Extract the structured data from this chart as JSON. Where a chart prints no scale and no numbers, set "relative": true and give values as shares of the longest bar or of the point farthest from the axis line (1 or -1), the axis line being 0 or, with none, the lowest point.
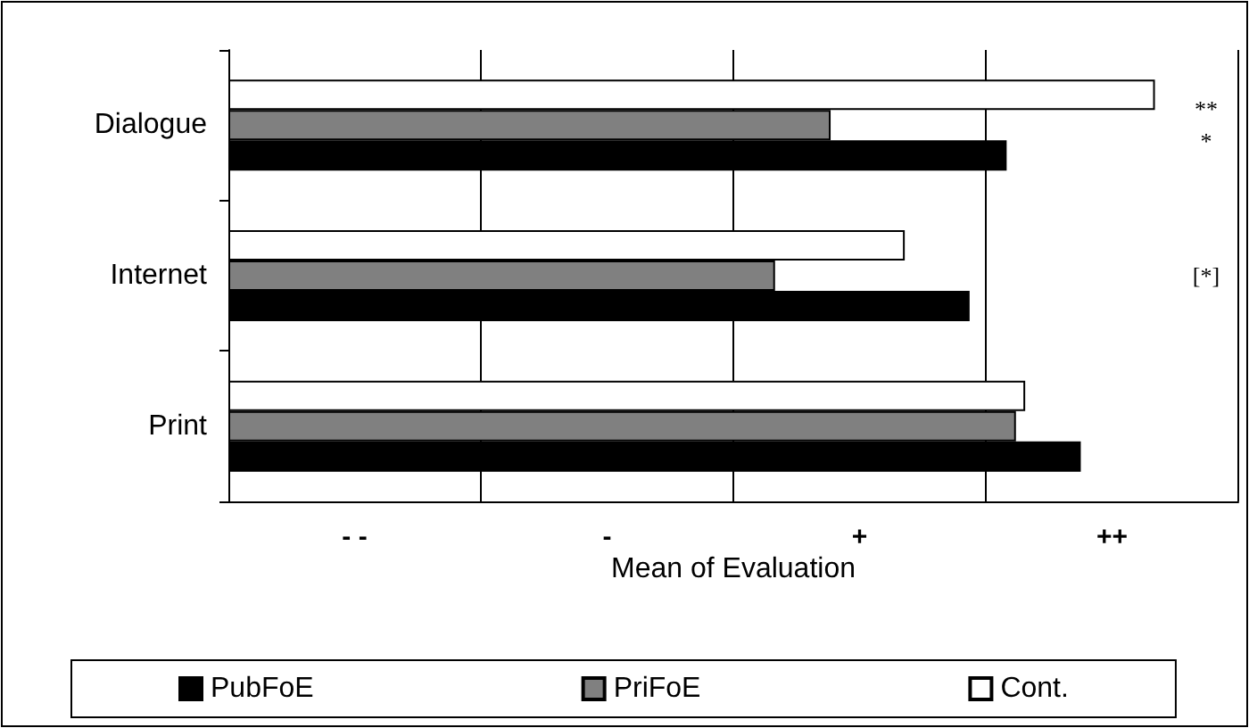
{
  "chart_data": {
    "type": "bar",
    "orientation": "horizontal",
    "relative": true,
    "xlabel": "Mean of Evaluation",
    "categories": [
      "Dialogue",
      "Internet",
      "Print"
    ],
    "series": [
      {
        "name": "PubFoE",
        "color": "#000000",
        "values": [
          0.84,
          0.8,
          0.92
        ]
      },
      {
        "name": "PriFoE",
        "color": "#808080",
        "values": [
          0.65,
          0.59,
          0.85
        ]
      },
      {
        "name": "Cont.",
        "color": "#ffffff",
        "values": [
          1,
          0.73,
          0.86
        ]
      }
    ],
    "grid": "x",
    "legend": "bottom",
    "annotations": [
      "- -",
      "-",
      "+",
      "++",
      "**",
      "*",
      "[*]"
    ]
  }
}
